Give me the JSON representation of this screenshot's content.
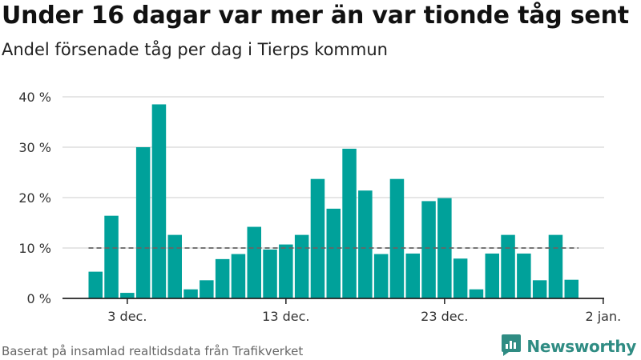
{
  "title": "Under 16 dagar var mer än var tionde tåg sent",
  "subtitle": "Andel försenade tåg per dag i Tierps kommun",
  "source": "Baserat på insamlad realtidsdata från Trafikverket",
  "brand": {
    "name": "Newsworthy",
    "icon": "newsworthy-logo-icon",
    "color": "#2f8c83"
  },
  "colors": {
    "bar": "#00a19a",
    "grid": "#dddddd",
    "axis": "#222222",
    "reference": "#666666"
  },
  "chart_data": {
    "type": "bar",
    "x": [
      "1 dec.",
      "2 dec.",
      "3 dec.",
      "4 dec.",
      "5 dec.",
      "6 dec.",
      "7 dec.",
      "8 dec.",
      "9 dec.",
      "10 dec.",
      "11 dec.",
      "12 dec.",
      "13 dec.",
      "14 dec.",
      "15 dec.",
      "16 dec.",
      "17 dec.",
      "18 dec.",
      "19 dec.",
      "20 dec.",
      "21 dec.",
      "22 dec.",
      "23 dec.",
      "24 dec.",
      "25 dec.",
      "26 dec.",
      "27 dec.",
      "28 dec.",
      "29 dec.",
      "30 dec.",
      "31 dec."
    ],
    "values": [
      5.3,
      16.4,
      1.1,
      30.0,
      38.5,
      12.6,
      1.8,
      3.6,
      7.8,
      8.8,
      14.2,
      9.7,
      10.7,
      12.6,
      23.7,
      17.8,
      29.7,
      21.4,
      8.8,
      23.7,
      8.9,
      19.3,
      19.9,
      7.9,
      1.8,
      8.9,
      12.6,
      8.9,
      3.6,
      12.6,
      3.7
    ],
    "xtick_labels": [
      "3 dec.",
      "13 dec.",
      "23 dec.",
      "2 jan."
    ],
    "xtick_positions": [
      2,
      12,
      22,
      32
    ],
    "yticks": [
      0,
      10,
      20,
      30,
      40
    ],
    "ytick_labels": [
      "0 %",
      "10 %",
      "20 %",
      "30 %",
      "40 %"
    ],
    "ylim": [
      0,
      40
    ],
    "reference_line": 10,
    "grid": true
  }
}
